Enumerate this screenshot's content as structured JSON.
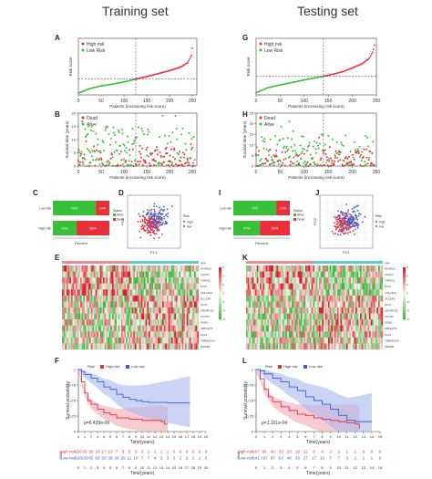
{
  "headers": {
    "left": "Training set",
    "right": "Testing set"
  },
  "letters": {
    "left": [
      "A",
      "B",
      "C",
      "D",
      "E",
      "F"
    ],
    "right": [
      "G",
      "H",
      "I",
      "J",
      "K",
      "L"
    ]
  },
  "colors": {
    "high": "#e8303a",
    "low": "#38c038",
    "low_blue": "#3a5fd0",
    "heat_red": "#d8202a",
    "heat_white": "#f6f3ee",
    "heat_green": "#3cb83c",
    "ci_red": "#f2a8b0",
    "ci_blue": "#aab8f0"
  },
  "chart_data": [
    {
      "panel": "A",
      "type": "scatter",
      "ylabel": "Risk score",
      "xlabel": "Patients (increasing risk score)",
      "legend": [
        "High risk",
        "Low Risk"
      ],
      "legend_position": "top-left",
      "xlim": [
        0,
        260
      ],
      "xticks": [
        0,
        50,
        100,
        150,
        200,
        250
      ],
      "n": 252,
      "cutoff_index": 126,
      "median_line": 0.9,
      "x": [
        0,
        25,
        50,
        75,
        100,
        126,
        150,
        175,
        200,
        225,
        240,
        248,
        252
      ],
      "y": [
        0.1,
        0.35,
        0.5,
        0.6,
        0.72,
        0.88,
        1.02,
        1.18,
        1.35,
        1.55,
        1.8,
        2.2,
        3.0
      ]
    },
    {
      "panel": "G",
      "type": "scatter",
      "ylabel": "Risk score",
      "xlabel": "Patients (increasing risk score)",
      "legend": [
        "High risk",
        "Low Risk"
      ],
      "legend_position": "top-left",
      "xlim": [
        0,
        250
      ],
      "xticks": [
        0,
        50,
        100,
        150,
        200,
        250
      ],
      "n": 248,
      "cutoff_index": 140,
      "median_line": 0.9,
      "x": [
        0,
        25,
        50,
        75,
        100,
        140,
        160,
        180,
        200,
        220,
        235,
        243,
        248
      ],
      "y": [
        0.1,
        0.35,
        0.48,
        0.6,
        0.72,
        0.9,
        1.0,
        1.12,
        1.3,
        1.5,
        1.75,
        2.1,
        2.6
      ]
    },
    {
      "panel": "B",
      "type": "scatter",
      "ylabel": "Survival time (years)",
      "xlabel": "Patients (increasing risk score)",
      "legend": [
        "Dead",
        "Alive"
      ],
      "legend_position": "top-left",
      "xlim": [
        0,
        260
      ],
      "xticks": [
        0,
        50,
        100,
        150,
        200,
        250
      ],
      "ylim": [
        0,
        20
      ],
      "yticks": [
        0,
        5,
        10,
        15,
        20
      ],
      "cutoff_index": 126
    },
    {
      "panel": "H",
      "type": "scatter",
      "ylabel": "Survival time (years)",
      "xlabel": "Patients (increasing risk score)",
      "legend": [
        "Dead",
        "Alive"
      ],
      "legend_position": "top-left",
      "xlim": [
        0,
        250
      ],
      "xticks": [
        0,
        50,
        100,
        150,
        200,
        250
      ],
      "ylim": [
        0,
        25
      ],
      "yticks": [
        0,
        5,
        10,
        15,
        20,
        25
      ],
      "cutoff_index": 140
    },
    {
      "panel": "C",
      "type": "bar",
      "orientation": "horizontal",
      "stacked": true,
      "xlabel": "Percent",
      "categories": [
        "Low risk",
        "High risk"
      ],
      "legend_title": "Status",
      "legend": [
        "Alive",
        "Dead"
      ],
      "series": [
        {
          "name": "Alive",
          "values": [
            0.76,
            0.42
          ]
        },
        {
          "name": "Dead",
          "values": [
            0.24,
            0.58
          ]
        }
      ],
      "labels": [
        [
          "76%",
          "24%"
        ],
        [
          "42%",
          "58%"
        ]
      ]
    },
    {
      "panel": "I",
      "type": "bar",
      "orientation": "horizontal",
      "stacked": true,
      "xlabel": "Percent",
      "categories": [
        "Low risk",
        "High risk"
      ],
      "legend_title": "Status",
      "legend": [
        "Alive",
        "Dead"
      ],
      "series": [
        {
          "name": "Alive",
          "values": [
            0.76,
            0.47
          ]
        },
        {
          "name": "Dead",
          "values": [
            0.24,
            0.53
          ]
        }
      ],
      "labels": [
        [
          "76%",
          "24%"
        ],
        [
          "47%",
          "53%"
        ]
      ]
    },
    {
      "panel": "D",
      "type": "scatter",
      "xlabel": "PC1",
      "ylabel": "PC2",
      "legend_title": "Risk",
      "legend": [
        "high",
        "low"
      ],
      "xlim": [
        -4,
        4
      ],
      "ylim": [
        -4,
        4
      ]
    },
    {
      "panel": "J",
      "type": "scatter",
      "xlabel": "PC1",
      "ylabel": "PC2",
      "legend_title": "Risk",
      "legend": [
        "high",
        "low"
      ],
      "xlim": [
        -3,
        3
      ],
      "ylim": [
        -3,
        3
      ]
    },
    {
      "panel": "E",
      "type": "heatmap",
      "top_bar_label": "type",
      "genes": [
        "HOXB13",
        "ACAT2",
        "TFAP2C",
        "FLT4",
        "COL25A1",
        "SLC2A9",
        "STC1",
        "CRISPLD1",
        "FXYD3",
        "ASNS",
        "CBFA2T3",
        "PLK3",
        "TMEM132A",
        "MXRA8"
      ],
      "scale": [
        6,
        4,
        2,
        0,
        -2,
        -4,
        -6
      ]
    },
    {
      "panel": "K",
      "type": "heatmap",
      "top_bar_label": "type",
      "genes": [
        "HOXB13",
        "ACAT2",
        "TFAP2C",
        "FLT4",
        "COL25A1",
        "SLC2A9",
        "STC1",
        "CRISPLD1",
        "FXYD3",
        "ASNS",
        "CBFA2T3",
        "PLK3",
        "TMEM132A",
        "MXRA8"
      ],
      "scale": [
        6,
        4,
        2,
        0,
        -2,
        -4,
        -6
      ]
    },
    {
      "panel": "F",
      "type": "line",
      "ylabel": "Survival probability",
      "xlabel": "Time(years)",
      "pvalue": "p=6.439e-06",
      "legend_title": "Risk",
      "legend": [
        "High risk",
        "Low risk"
      ],
      "xlim": [
        0,
        20
      ],
      "ylim": [
        0,
        1
      ],
      "xticks": [
        0,
        1,
        2,
        3,
        4,
        5,
        6,
        7,
        8,
        9,
        10,
        11,
        12,
        13,
        14,
        15,
        16,
        17,
        18,
        19,
        20
      ],
      "yticks": [
        0,
        0.25,
        0.5,
        0.75,
        1
      ],
      "series": [
        {
          "name": "High risk",
          "x": [
            0,
            0.5,
            1,
            1.5,
            2,
            3,
            4,
            5,
            6,
            8,
            10,
            13,
            13.5,
            14
          ],
          "y": [
            1,
            0.8,
            0.62,
            0.5,
            0.44,
            0.36,
            0.3,
            0.27,
            0.22,
            0.2,
            0.18,
            0.16,
            0.12,
            0.12
          ]
        },
        {
          "name": "Low risk",
          "x": [
            0,
            0.5,
            1,
            2,
            3,
            4,
            5,
            6,
            7,
            8,
            9,
            10,
            11,
            12,
            14,
            16,
            17.5
          ],
          "y": [
            1,
            0.97,
            0.92,
            0.86,
            0.8,
            0.72,
            0.68,
            0.6,
            0.55,
            0.52,
            0.5,
            0.48,
            0.47,
            0.47,
            0.46,
            0.46,
            0.46
          ]
        }
      ],
      "risk_table": {
        "title": "Risk",
        "rows": [
          {
            "name": "High risk",
            "values": [
              "126",
              "69",
              "36",
              "24",
              "17",
              "13",
              "7",
              "5",
              "5",
              "3",
              "3",
              "1",
              "1",
              "1",
              "1",
              "0",
              "0",
              "0",
              "0",
              "0",
              "0"
            ]
          },
          {
            "name": "Low risk",
            "values": [
              "126",
              "109",
              "85",
              "69",
              "50",
              "38",
              "30",
              "20",
              "11",
              "10",
              "7",
              "7",
              "4",
              "3",
              "3",
              "3",
              "2",
              "2",
              "2",
              "1",
              "0"
            ]
          }
        ]
      }
    },
    {
      "panel": "L",
      "type": "line",
      "ylabel": "Survival probability",
      "xlabel": "Time(years)",
      "pvalue": "p=1.161e-04",
      "legend_title": "Risk",
      "legend": [
        "High risk",
        "Low risk"
      ],
      "xlim": [
        0,
        15
      ],
      "ylim": [
        0,
        1
      ],
      "xticks": [
        0,
        1,
        2,
        3,
        4,
        5,
        6,
        7,
        8,
        9,
        10,
        11,
        12,
        13,
        14,
        15
      ],
      "yticks": [
        0,
        0.25,
        0.5,
        0.75,
        1
      ],
      "series": [
        {
          "name": "High risk",
          "x": [
            0,
            0.5,
            1,
            1.5,
            2,
            3,
            4,
            5,
            6,
            7,
            8,
            9,
            10,
            11,
            12,
            12.5
          ],
          "y": [
            1,
            0.85,
            0.68,
            0.56,
            0.48,
            0.4,
            0.34,
            0.28,
            0.26,
            0.22,
            0.2,
            0.18,
            0.16,
            0.14,
            0.12,
            0.05
          ]
        },
        {
          "name": "Low risk",
          "x": [
            0,
            0.5,
            1,
            2,
            3,
            4,
            5,
            6,
            7,
            8,
            9,
            10,
            11,
            12,
            13,
            14
          ],
          "y": [
            1,
            0.98,
            0.93,
            0.86,
            0.8,
            0.72,
            0.66,
            0.56,
            0.5,
            0.44,
            0.36,
            0.26,
            0.18,
            0.16,
            0.16,
            0.16
          ]
        }
      ],
      "risk_table": {
        "title": "Risk",
        "rows": [
          {
            "name": "High risk",
            "values": [
              "107",
              "96",
              "49",
              "33",
              "23",
              "19",
              "12",
              "8",
              "4",
              "3",
              "2",
              "1",
              "1",
              "0",
              "0",
              "0"
            ]
          },
          {
            "name": "Low risk",
            "values": [
              "141",
              "107",
              "87",
              "63",
              "48",
              "39",
              "27",
              "17",
              "10",
              "7",
              "7",
              "3",
              "2",
              "1",
              "1",
              "0"
            ]
          }
        ]
      }
    }
  ]
}
